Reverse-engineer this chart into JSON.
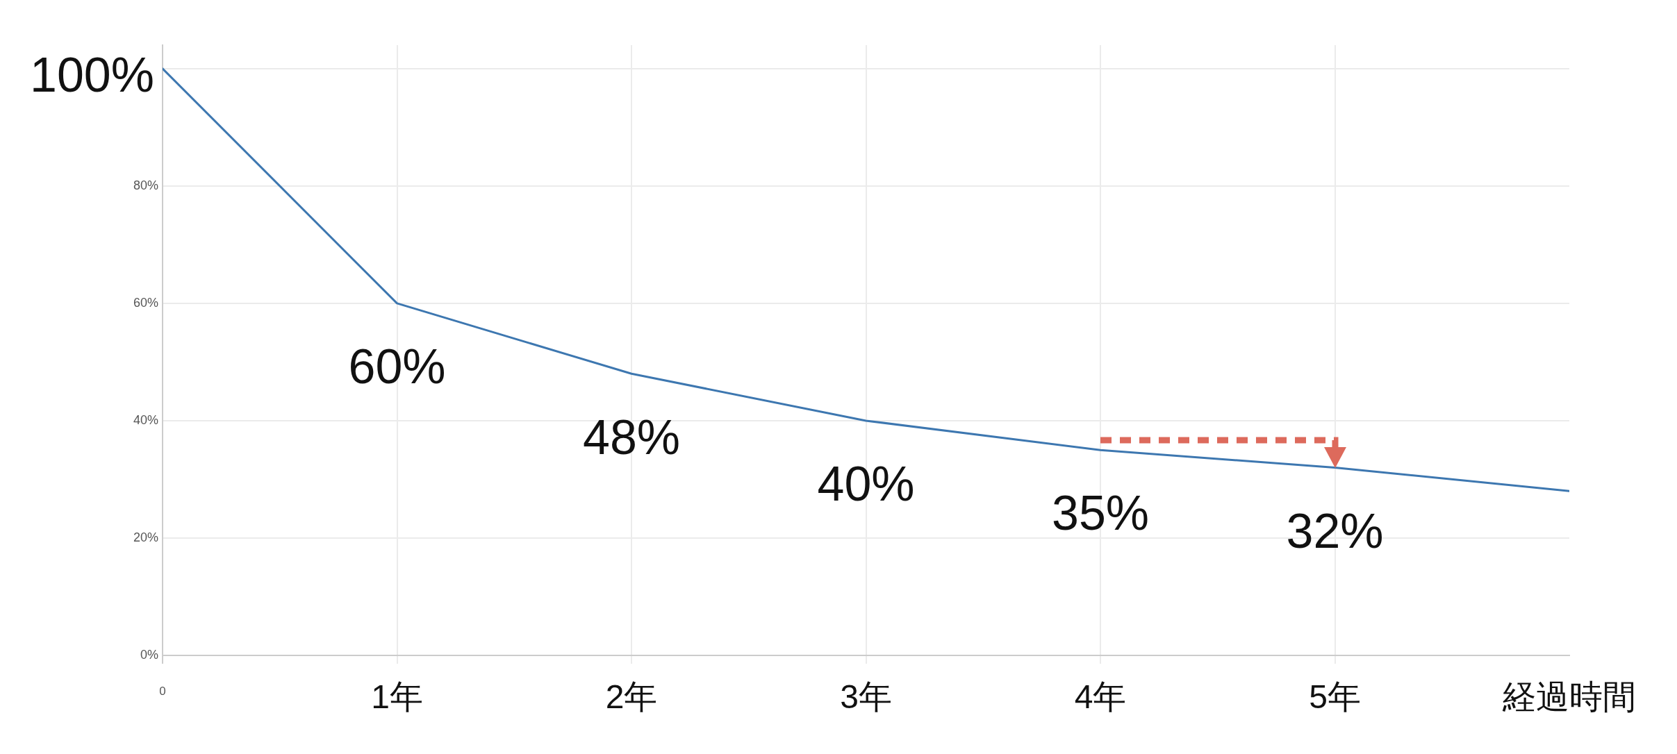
{
  "chart_data": {
    "type": "line",
    "x": [
      0,
      1,
      2,
      3,
      4,
      5,
      6
    ],
    "values": [
      100,
      60,
      48,
      40,
      35,
      32,
      28
    ],
    "color": "#3d77b0",
    "value_labels": [
      "100%",
      "60%",
      "48%",
      "40%",
      "35%",
      "32%",
      null
    ],
    "xlabel": "経過時間",
    "xlim": [
      0,
      6
    ],
    "xticks": [
      {
        "value": 0,
        "label": null
      },
      {
        "value": 1,
        "label": "1年"
      },
      {
        "value": 2,
        "label": "2年"
      },
      {
        "value": 3,
        "label": "3年"
      },
      {
        "value": 4,
        "label": "4年"
      },
      {
        "value": 5,
        "label": "5年"
      }
    ],
    "ylim": [
      0,
      104
    ],
    "yticks": [
      {
        "value": 0,
        "label": "0%"
      },
      {
        "value": 20,
        "label": "20%"
      },
      {
        "value": 40,
        "label": "40%"
      },
      {
        "value": 60,
        "label": "60%"
      },
      {
        "value": 80,
        "label": "80%"
      },
      {
        "value": 100,
        "label": null
      }
    ],
    "annotations": [
      "0"
    ],
    "grid": true
  }
}
